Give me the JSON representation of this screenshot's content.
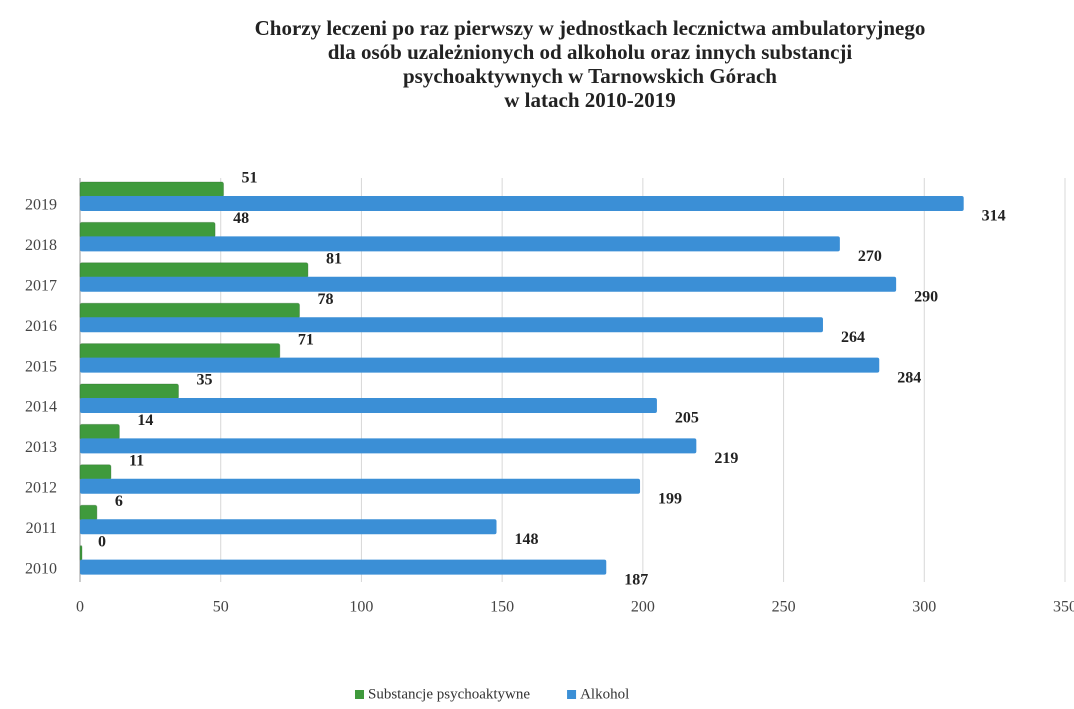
{
  "chart_data": {
    "type": "bar",
    "orientation": "horizontal",
    "title": [
      "Chorzy leczeni po raz pierwszy w jednostkach lecznictwa ambulatoryjnego",
      "dla osób uzależnionych od alkoholu oraz innych substancji",
      "psychoaktywnych w Tarnowskich Górach",
      "w latach 2010-2019"
    ],
    "categories": [
      "2019",
      "2018",
      "2017",
      "2016",
      "2015",
      "2014",
      "2013",
      "2012",
      "2011",
      "2010"
    ],
    "series": [
      {
        "name": "Substancje psychoaktywne",
        "color": "#3f9a3c",
        "values": [
          51,
          48,
          81,
          78,
          71,
          35,
          14,
          11,
          6,
          0
        ]
      },
      {
        "name": "Alkohol",
        "color": "#3b8fd6",
        "values": [
          314,
          270,
          290,
          264,
          284,
          205,
          219,
          199,
          148,
          187
        ]
      }
    ],
    "xlim": [
      0,
      350
    ],
    "xticks": [
      0,
      50,
      100,
      150,
      200,
      250,
      300,
      350
    ],
    "grid": true,
    "legend": "bottom"
  }
}
